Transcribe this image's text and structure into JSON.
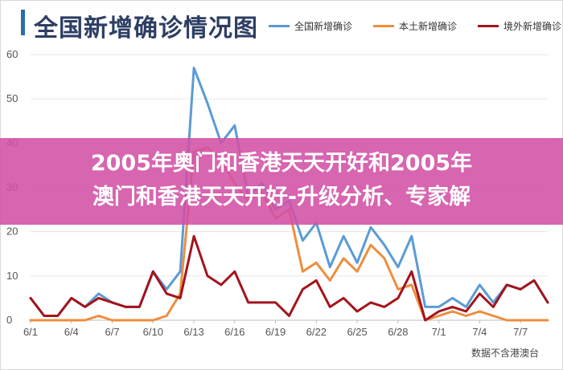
{
  "title": "全国新增确诊情况图",
  "banner": {
    "line1": "2005年奥门和香港天天开好和2005年",
    "line2": "澳门和香港天天开好-升级分析、专家解"
  },
  "source": "数据不含港澳台",
  "colors": {
    "national": "#5b9bd5",
    "local": "#ed8e3f",
    "imported": "#a3141c",
    "grid": "#e6e6e6"
  },
  "chart_data": {
    "type": "line",
    "x": [
      "6/1",
      "6/2",
      "6/3",
      "6/4",
      "6/5",
      "6/6",
      "6/7",
      "6/8",
      "6/9",
      "6/10",
      "6/11",
      "6/12",
      "6/13",
      "6/14",
      "6/15",
      "6/16",
      "6/17",
      "6/18",
      "6/19",
      "6/20",
      "6/21",
      "6/22",
      "6/23",
      "6/24",
      "6/25",
      "6/26",
      "6/27",
      "6/28",
      "6/29",
      "6/30",
      "7/1",
      "7/2",
      "7/3",
      "7/4",
      "7/5",
      "7/6",
      "7/7",
      "7/8",
      "7/9"
    ],
    "tick_labels": [
      "6/1",
      "6/4",
      "6/7",
      "6/10",
      "6/13",
      "6/16",
      "6/19",
      "6/22",
      "6/25",
      "6/28",
      "7/1",
      "7/4",
      "7/7"
    ],
    "ylim": [
      0,
      60
    ],
    "yticks": [
      0,
      10,
      20,
      30,
      40,
      50,
      60
    ],
    "series": [
      {
        "name": "全国新增确诊",
        "values": [
          5,
          1,
          1,
          5,
          3,
          6,
          4,
          3,
          3,
          11,
          7,
          11,
          57,
          49,
          40,
          44,
          28,
          31,
          25,
          27,
          18,
          22,
          12,
          19,
          13,
          21,
          17,
          12,
          19,
          3,
          3,
          5,
          3,
          8,
          4,
          8,
          7,
          9,
          4
        ]
      },
      {
        "name": "本土新增确诊",
        "values": [
          0,
          0,
          0,
          0,
          0,
          1,
          0,
          0,
          0,
          0,
          1,
          6,
          38,
          39,
          36,
          31,
          27,
          29,
          23,
          25,
          11,
          13,
          9,
          14,
          11,
          17,
          14,
          7,
          8,
          0,
          1,
          2,
          1,
          2,
          1,
          0,
          0,
          0,
          0
        ]
      },
      {
        "name": "境外新增确诊",
        "values": [
          5,
          1,
          1,
          5,
          3,
          5,
          4,
          3,
          3,
          11,
          6,
          5,
          19,
          10,
          8,
          11,
          4,
          4,
          4,
          1,
          7,
          9,
          3,
          5,
          2,
          4,
          3,
          5,
          11,
          0,
          2,
          3,
          2,
          6,
          3,
          8,
          7,
          9,
          4
        ]
      }
    ]
  }
}
